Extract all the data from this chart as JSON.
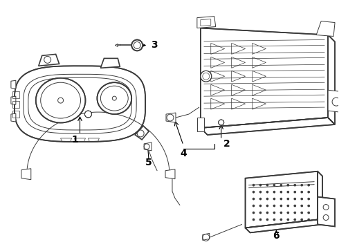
{
  "bg_color": "#ffffff",
  "line_color": "#3a3a3a",
  "label_color": "#000000",
  "fig_width": 4.9,
  "fig_height": 3.6,
  "dpi": 100,
  "label_fontsize": 10,
  "label_fontweight": "bold"
}
